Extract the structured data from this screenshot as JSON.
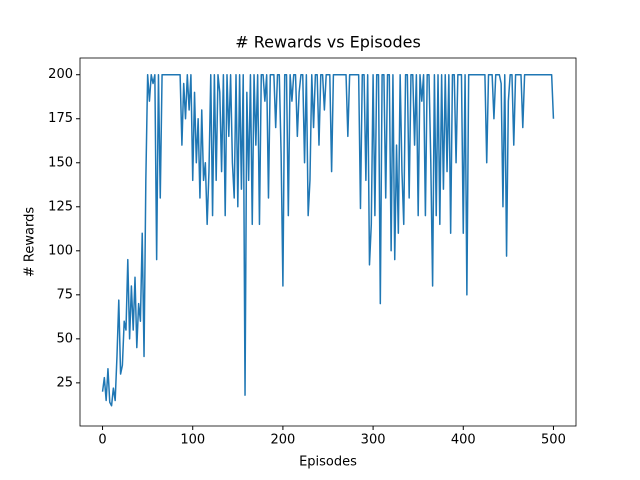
{
  "chart_data": {
    "type": "line",
    "title": "# Rewards vs Episodes",
    "x_label": "Episodes",
    "y_label": "# Rewards",
    "x": [
      0,
      2,
      4,
      6,
      8,
      10,
      12,
      14,
      16,
      18,
      20,
      22,
      24,
      26,
      28,
      30,
      32,
      34,
      36,
      38,
      40,
      42,
      44,
      46,
      48,
      50,
      52,
      54,
      56,
      58,
      60,
      62,
      64,
      66,
      68,
      70,
      72,
      74,
      76,
      78,
      80,
      82,
      84,
      86,
      88,
      90,
      92,
      94,
      96,
      98,
      100,
      102,
      104,
      106,
      108,
      110,
      112,
      114,
      116,
      118,
      120,
      122,
      124,
      126,
      128,
      130,
      132,
      134,
      136,
      138,
      140,
      142,
      144,
      146,
      148,
      150,
      152,
      154,
      156,
      158,
      160,
      162,
      164,
      166,
      168,
      170,
      172,
      174,
      176,
      178,
      180,
      182,
      184,
      186,
      188,
      190,
      192,
      194,
      196,
      198,
      200,
      202,
      204,
      206,
      208,
      210,
      212,
      214,
      216,
      218,
      220,
      222,
      224,
      226,
      228,
      230,
      232,
      234,
      236,
      238,
      240,
      242,
      244,
      246,
      248,
      250,
      252,
      254,
      256,
      258,
      260,
      262,
      264,
      266,
      268,
      270,
      272,
      274,
      276,
      278,
      280,
      282,
      284,
      286,
      288,
      290,
      292,
      294,
      296,
      298,
      300,
      302,
      304,
      306,
      308,
      310,
      312,
      314,
      316,
      318,
      320,
      322,
      324,
      326,
      328,
      330,
      332,
      334,
      336,
      338,
      340,
      342,
      344,
      346,
      348,
      350,
      352,
      354,
      356,
      358,
      360,
      362,
      364,
      366,
      368,
      370,
      372,
      374,
      376,
      378,
      380,
      382,
      384,
      386,
      388,
      390,
      392,
      394,
      396,
      398,
      400,
      402,
      404,
      406,
      408,
      410,
      412,
      414,
      416,
      418,
      420,
      422,
      424,
      426,
      428,
      430,
      432,
      434,
      436,
      438,
      440,
      442,
      444,
      446,
      448,
      450,
      452,
      454,
      456,
      458,
      460,
      462,
      464,
      466,
      468,
      470,
      472,
      474,
      476,
      478,
      480,
      482,
      484,
      486,
      488,
      490,
      492,
      494,
      496,
      498,
      500
    ],
    "series": [
      {
        "name": "Rewards",
        "color": "#1f77b4",
        "values": [
          20,
          28,
          15,
          33,
          14,
          12,
          22,
          15,
          40,
          72,
          30,
          35,
          60,
          55,
          95,
          50,
          80,
          55,
          85,
          45,
          70,
          60,
          110,
          40,
          140,
          200,
          185,
          200,
          195,
          200,
          95,
          200,
          130,
          200,
          200,
          200,
          200,
          200,
          200,
          200,
          200,
          200,
          200,
          200,
          160,
          195,
          175,
          200,
          180,
          200,
          140,
          190,
          150,
          175,
          130,
          180,
          140,
          150,
          115,
          145,
          200,
          120,
          200,
          140,
          200,
          190,
          145,
          200,
          120,
          200,
          165,
          200,
          150,
          130,
          200,
          125,
          200,
          135,
          200,
          18,
          190,
          140,
          200,
          115,
          200,
          160,
          200,
          115,
          200,
          200,
          185,
          200,
          130,
          200,
          200,
          200,
          170,
          200,
          200,
          155,
          80,
          200,
          200,
          120,
          200,
          185,
          200,
          200,
          165,
          190,
          200,
          200,
          150,
          200,
          120,
          140,
          200,
          170,
          200,
          200,
          160,
          200,
          200,
          180,
          200,
          200,
          200,
          145,
          200,
          200,
          200,
          200,
          200,
          200,
          200,
          200,
          165,
          200,
          200,
          200,
          200,
          200,
          200,
          124,
          200,
          200,
          140,
          200,
          92,
          115,
          200,
          120,
          200,
          200,
          70,
          200,
          200,
          130,
          200,
          200,
          100,
          200,
          95,
          160,
          110,
          200,
          145,
          115,
          200,
          200,
          130,
          200,
          200,
          160,
          200,
          120,
          200,
          185,
          200,
          120,
          200,
          200,
          150,
          80,
          200,
          120,
          200,
          115,
          200,
          135,
          200,
          145,
          200,
          110,
          200,
          200,
          150,
          200,
          200,
          200,
          110,
          200,
          75,
          200,
          200,
          200,
          200,
          200,
          200,
          200,
          200,
          200,
          200,
          150,
          200,
          200,
          200,
          175,
          200,
          200,
          200,
          195,
          125,
          200,
          97,
          185,
          200,
          200,
          160,
          200,
          200,
          200,
          200,
          170,
          200,
          200,
          200,
          200,
          200,
          200,
          200,
          200,
          200,
          200,
          200,
          200,
          200,
          200,
          200,
          200,
          175
        ]
      }
    ],
    "xlim": [
      -25,
      525
    ],
    "ylim": [
      0.5,
      209.5
    ],
    "xticks": [
      0,
      100,
      200,
      300,
      400,
      500
    ],
    "yticks": [
      25,
      50,
      75,
      100,
      125,
      150,
      175,
      200
    ]
  }
}
